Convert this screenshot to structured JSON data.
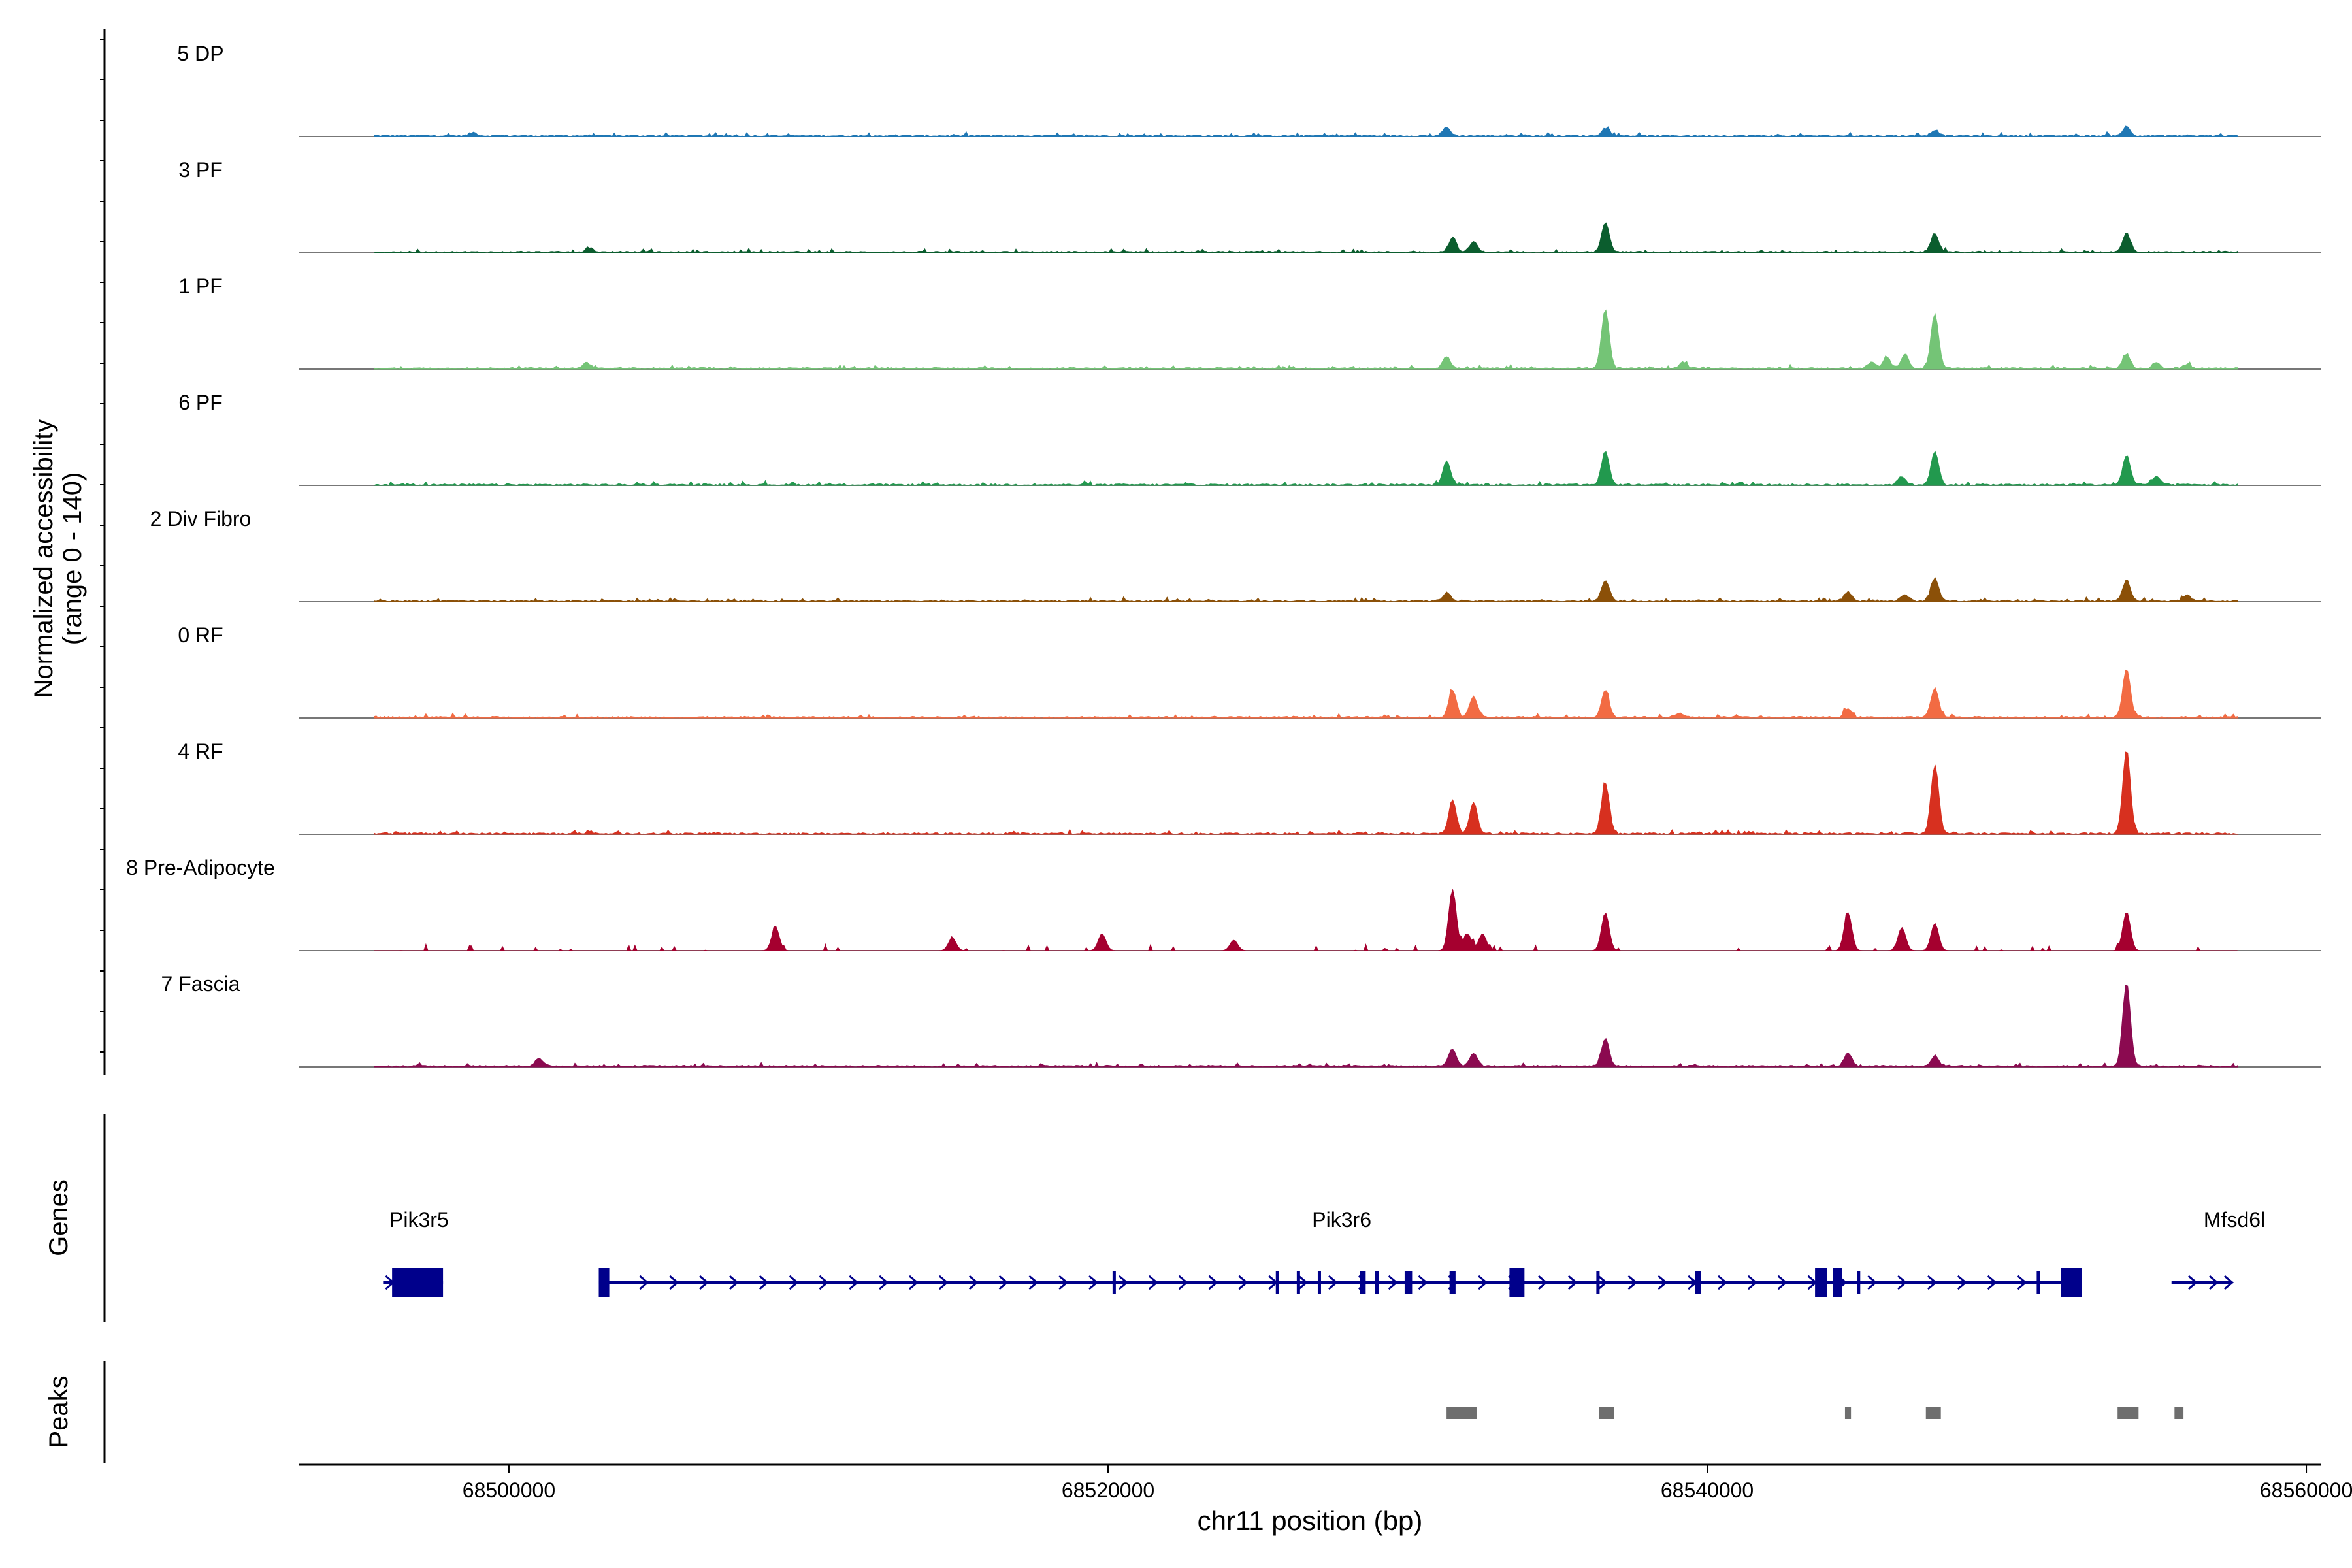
{
  "chart_data": {
    "type": "area",
    "title": "",
    "ylabel_line1": "Normalized accessibility",
    "ylabel_line2": "(range 0 - 140)",
    "xlabel": "chr11 position (bp)",
    "xlim": [
      68493000,
      68560500
    ],
    "ylim": [
      0,
      140
    ],
    "x_ticks": [
      68500000,
      68520000,
      68540000,
      68560000
    ],
    "x_tick_labels": [
      "68500000",
      "68520000",
      "68540000",
      "68560000"
    ],
    "genes_label": "Genes",
    "peaks_label": "Peaks",
    "tracks": [
      {
        "name": "5 DP",
        "color": "#1F77B4",
        "peaks": [
          [
            68531300,
            20
          ],
          [
            68536600,
            18
          ],
          [
            68547600,
            14
          ],
          [
            68554000,
            22
          ],
          [
            68498800,
            8
          ]
        ]
      },
      {
        "name": "3 PF",
        "color": "#0B5D2E",
        "peaks": [
          [
            68531500,
            35
          ],
          [
            68532200,
            25
          ],
          [
            68536600,
            70
          ],
          [
            68547600,
            45
          ],
          [
            68554000,
            45
          ],
          [
            68502700,
            10
          ]
        ]
      },
      {
        "name": "1 PF",
        "color": "#74C476",
        "peaks": [
          [
            68531300,
            28
          ],
          [
            68536600,
            140
          ],
          [
            68539200,
            15
          ],
          [
            68545500,
            15
          ],
          [
            68546000,
            25
          ],
          [
            68546600,
            35
          ],
          [
            68547600,
            130
          ],
          [
            68554000,
            35
          ],
          [
            68555000,
            12
          ],
          [
            68556000,
            10
          ],
          [
            68502600,
            14
          ]
        ]
      },
      {
        "name": "6 PF",
        "color": "#22994E",
        "peaks": [
          [
            68531300,
            55
          ],
          [
            68536600,
            80
          ],
          [
            68546500,
            20
          ],
          [
            68547600,
            78
          ],
          [
            68554000,
            70
          ],
          [
            68555000,
            20
          ]
        ]
      },
      {
        "name": "2 Div Fibro",
        "color": "#8B5008",
        "peaks": [
          [
            68531300,
            20
          ],
          [
            68536600,
            50
          ],
          [
            68544700,
            22
          ],
          [
            68546600,
            15
          ],
          [
            68547600,
            55
          ],
          [
            68554000,
            50
          ],
          [
            68556000,
            15
          ]
        ]
      },
      {
        "name": "0 RF",
        "color": "#F26B43",
        "peaks": [
          [
            68531500,
            65
          ],
          [
            68532200,
            50
          ],
          [
            68536600,
            65
          ],
          [
            68539100,
            10
          ],
          [
            68544700,
            22
          ],
          [
            68547600,
            70
          ],
          [
            68554000,
            115
          ]
        ]
      },
      {
        "name": "4 RF",
        "color": "#D7301F",
        "peaks": [
          [
            68531500,
            80
          ],
          [
            68532200,
            75
          ],
          [
            68536600,
            120
          ],
          [
            68547600,
            165
          ],
          [
            68554000,
            200
          ]
        ]
      },
      {
        "name": "8 Pre-Adipocyte",
        "color": "#A5002F",
        "peaks": [
          [
            68531500,
            145
          ],
          [
            68532000,
            40
          ],
          [
            68536600,
            90
          ],
          [
            68544700,
            90
          ],
          [
            68547600,
            65
          ],
          [
            68546500,
            55
          ],
          [
            68554000,
            92
          ],
          [
            68508900,
            55
          ],
          [
            68514800,
            30
          ],
          [
            68519800,
            40
          ],
          [
            68524200,
            25
          ],
          [
            68532500,
            40
          ]
        ]
      },
      {
        "name": "7 Fascia",
        "color": "#8B0A50",
        "peaks": [
          [
            68531500,
            40
          ],
          [
            68532200,
            30
          ],
          [
            68536600,
            65
          ],
          [
            68544700,
            30
          ],
          [
            68547600,
            25
          ],
          [
            68554000,
            200
          ],
          [
            68501000,
            20
          ]
        ]
      }
    ],
    "genes": [
      {
        "name": "Pik3r5",
        "label_x": 68497000
      },
      {
        "name": "Pik3r6",
        "label_x": 68527800
      },
      {
        "name": "Mfsd6l",
        "label_x": 68557600
      }
    ],
    "gene_structure": {
      "pik3r5": {
        "start": 68495800,
        "end": 68497800,
        "exons": [
          [
            68496100,
            68497800
          ]
        ]
      },
      "pik3r6": {
        "start": 68503000,
        "end": 68552500,
        "exons": [
          [
            68503000,
            68503350
          ],
          [
            68520150,
            68520250
          ],
          [
            68525600,
            68525700
          ],
          [
            68526300,
            68526400
          ],
          [
            68527000,
            68527100
          ],
          [
            68528400,
            68528600
          ],
          [
            68528900,
            68529050
          ],
          [
            68529900,
            68530150
          ],
          [
            68531400,
            68531600
          ],
          [
            68533400,
            68533900
          ],
          [
            68536300,
            68536400
          ],
          [
            68539600,
            68539800
          ],
          [
            68543600,
            68544000
          ],
          [
            68544200,
            68544500
          ],
          [
            68545000,
            68545100
          ],
          [
            68551000,
            68551100
          ],
          [
            68551800,
            68552500
          ]
        ]
      },
      "mfsd6l": {
        "start": 68555500,
        "end": 68557500,
        "exons": []
      }
    },
    "peak_regions": [
      [
        68531300,
        68532300
      ],
      [
        68536400,
        68536900
      ],
      [
        68544600,
        68544800
      ],
      [
        68547300,
        68547800
      ],
      [
        68553700,
        68554400
      ],
      [
        68555600,
        68555900
      ]
    ]
  }
}
